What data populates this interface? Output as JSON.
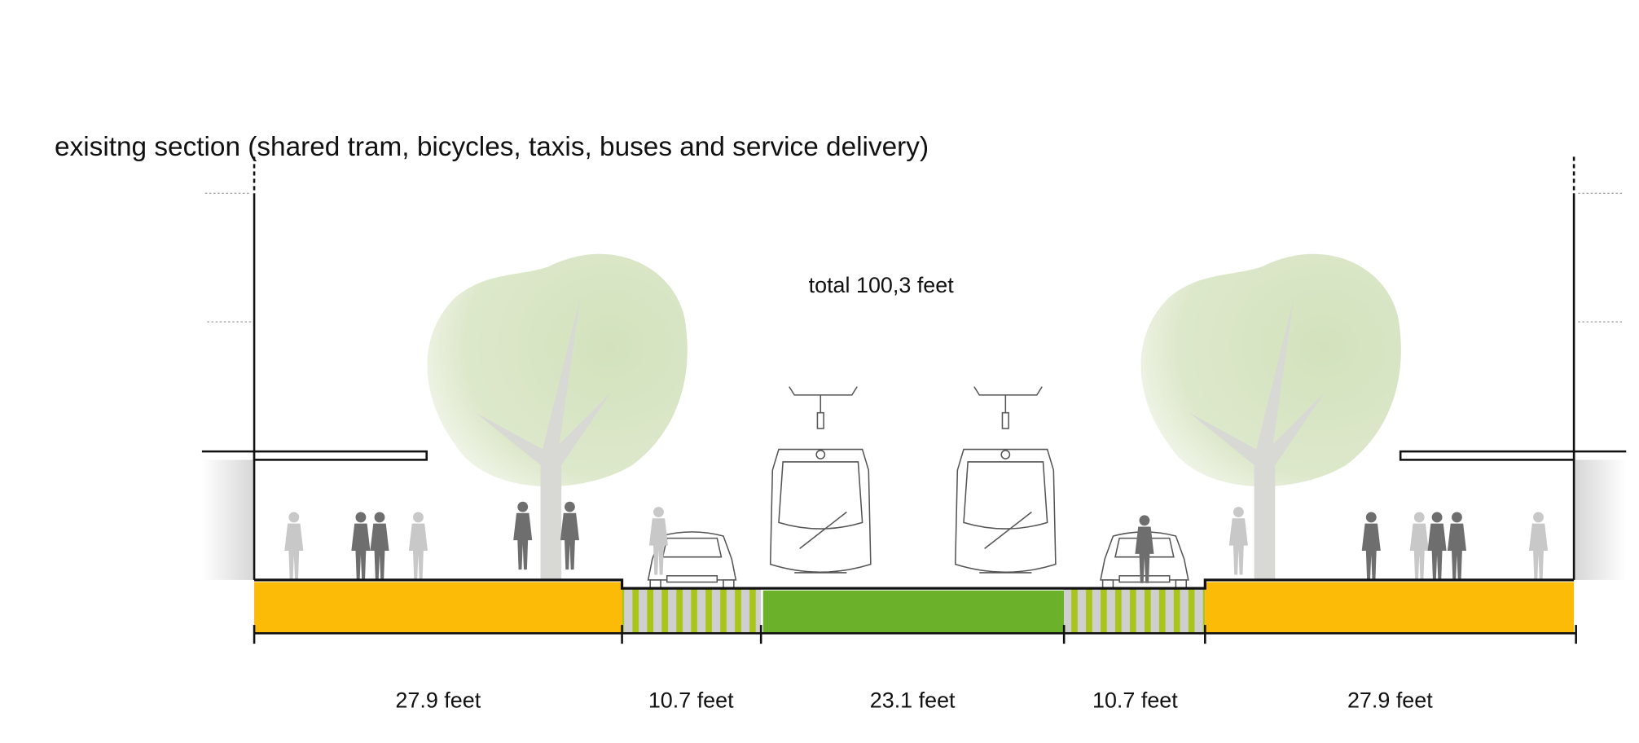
{
  "title": "exisitng section (shared tram, bicycles, taxis, buses and service delivery)",
  "total": "total 100,3 feet",
  "segments": [
    {
      "label": "27.9 feet"
    },
    {
      "label": "10.7 feet"
    },
    {
      "label": "23.1 feet"
    },
    {
      "label": "10.7 feet"
    },
    {
      "label": "27.9 feet"
    }
  ]
}
